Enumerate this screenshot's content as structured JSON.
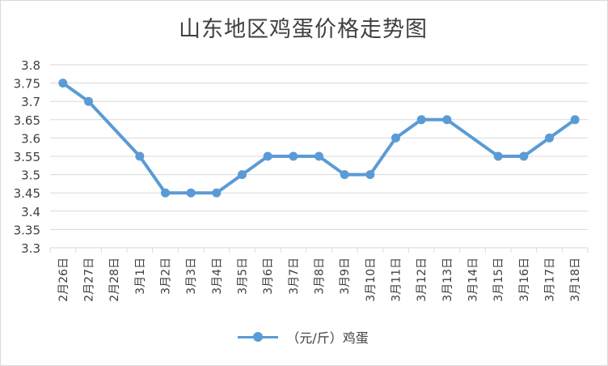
{
  "chart_data": {
    "type": "line",
    "title": "山东地区鸡蛋价格走势图",
    "categories": [
      "2月26日",
      "2月27日",
      "2月28日",
      "3月1日",
      "3月2日",
      "3月3日",
      "3月4日",
      "3月5日",
      "3月6日",
      "3月7日",
      "3月8日",
      "3月9日",
      "3月10日",
      "3月11日",
      "3月12日",
      "3月13日",
      "3月14日",
      "3月15日",
      "3月16日",
      "3月17日",
      "3月18日"
    ],
    "series": [
      {
        "name": "（元/斤）鸡蛋",
        "values": [
          3.75,
          3.7,
          null,
          3.55,
          3.45,
          3.45,
          3.45,
          3.5,
          3.55,
          3.55,
          3.55,
          3.5,
          3.5,
          3.6,
          3.65,
          3.65,
          null,
          3.55,
          3.55,
          3.6,
          3.65
        ]
      }
    ],
    "ylim": [
      3.3,
      3.8
    ],
    "yticks": [
      "3.3",
      "3.35",
      "3.4",
      "3.45",
      "3.5",
      "3.55",
      "3.6",
      "3.65",
      "3.7",
      "3.75",
      "3.8"
    ],
    "grid": true,
    "legend_position": "bottom",
    "colors": {
      "series": "#5b9bd5",
      "grid": "#d9d9d9",
      "text": "#404040"
    }
  }
}
